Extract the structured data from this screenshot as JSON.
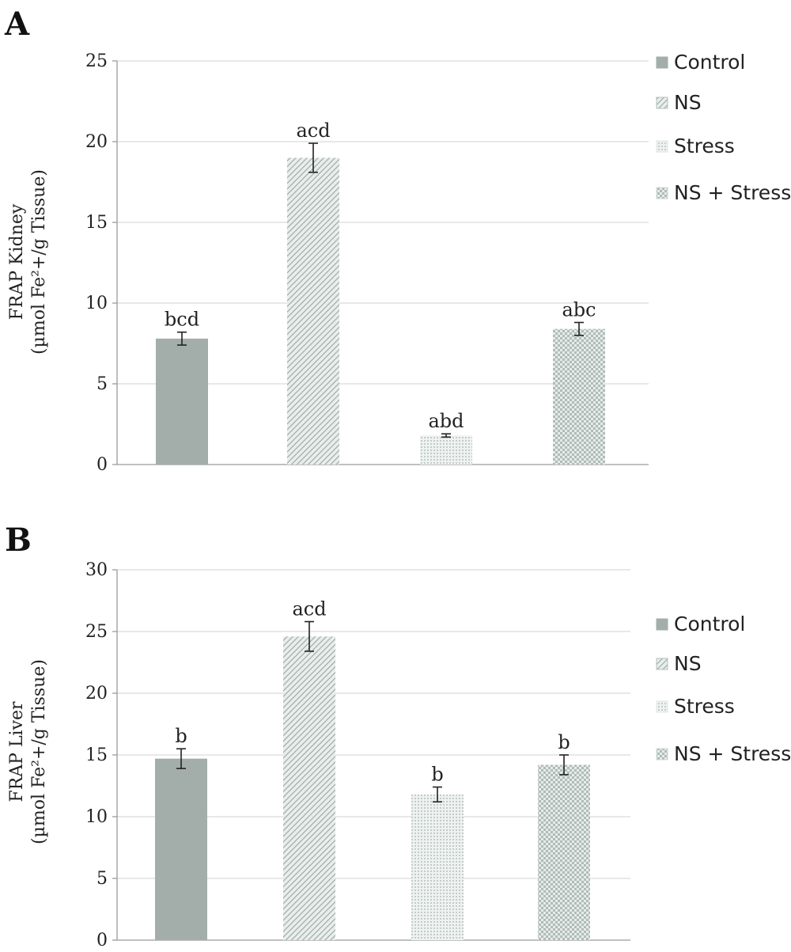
{
  "colors": {
    "control": "#a3aeab",
    "ns": "#b4bfbc",
    "stress": "#dde3e1",
    "ns_stress": "#ccd4d1"
  },
  "chart_data": [
    {
      "type": "bar",
      "panel": "A",
      "categories": [
        "Control",
        "NS",
        "Stress",
        "NS + Stress"
      ],
      "values": [
        7.8,
        19.0,
        1.8,
        8.4
      ],
      "errors": [
        0.4,
        0.9,
        0.1,
        0.4
      ],
      "annotations": [
        "bcd",
        "acd",
        "abd",
        "abc"
      ],
      "ylabel": [
        "FRAP Kidney",
        "(µmol Fe²+/g Tissue)"
      ],
      "ylim": [
        0,
        25
      ],
      "yticks": [
        "0",
        "5",
        "10",
        "15",
        "20",
        "25"
      ],
      "grid": true,
      "legend": [
        "Control",
        "NS",
        "Stress",
        "NS + Stress"
      ],
      "legend_position": "top-right"
    },
    {
      "type": "bar",
      "panel": "B",
      "categories": [
        "Control",
        "NS",
        "Stress",
        "NS + Stress"
      ],
      "values": [
        14.7,
        24.6,
        11.8,
        14.2
      ],
      "errors": [
        0.8,
        1.2,
        0.6,
        0.8
      ],
      "annotations": [
        "b",
        "acd",
        "b",
        "b"
      ],
      "ylabel": [
        "FRAP Liver",
        "(µmol Fe²+/g Tissue)"
      ],
      "ylim": [
        0,
        30
      ],
      "yticks": [
        "0",
        "5",
        "10",
        "15",
        "20",
        "25",
        "30"
      ],
      "grid": true,
      "legend": [
        "Control",
        "NS",
        "Stress",
        "NS + Stress"
      ],
      "legend_position": "right"
    }
  ]
}
